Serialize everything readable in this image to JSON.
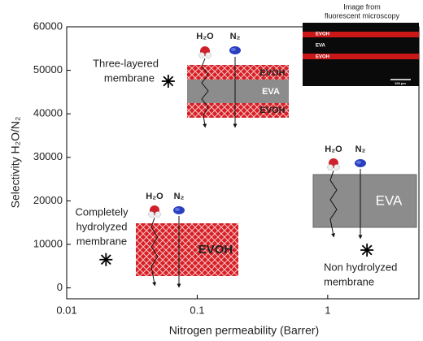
{
  "chart_data": {
    "type": "scatter",
    "x_label": "Nitrogen permeability (Barrer)",
    "y_label": "Selectivity H₂O/N₂",
    "x": [
      0.06,
      0.02,
      2
    ],
    "values": [
      47500,
      6500,
      8700
    ],
    "color": "#000000",
    "xlog": true,
    "xlim": [
      0.01,
      5
    ],
    "xticks": [
      0.01,
      0.1,
      1
    ],
    "ylim": [
      -2500,
      60000
    ],
    "yticks": [
      0,
      10000,
      20000,
      30000,
      40000,
      50000,
      60000
    ],
    "annotations": [
      [
        "Three-layered",
        "membrane"
      ],
      [
        "Completely",
        "hydrolyzed",
        "membrane"
      ],
      [
        "Non hydrolyzed",
        "membrane"
      ]
    ],
    "insets": {
      "three_layer": {
        "water": "H₂O",
        "nitrogen": "N₂",
        "layers": [
          "EVOH",
          "EVA",
          "EVOH"
        ]
      },
      "non_hydrolyzed": {
        "water": "H₂O",
        "nitrogen": "N₂",
        "layer": "EVA"
      },
      "hydrolyzed": {
        "water": "H₂O",
        "nitrogen": "N₂",
        "layer": "EVOH"
      },
      "micrograph": {
        "title": [
          "Image from",
          "fluorescent microscopy"
        ],
        "layers": [
          "EVOH",
          "EVA",
          "EVOH"
        ],
        "scale": "100 µm"
      }
    }
  }
}
